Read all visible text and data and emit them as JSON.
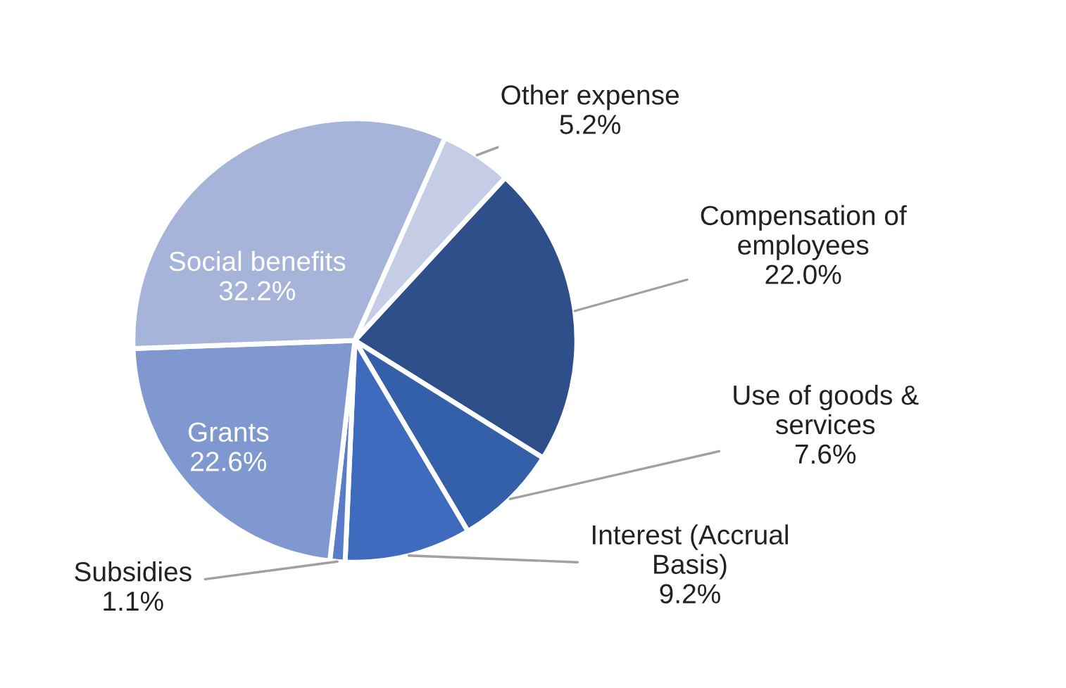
{
  "chart_data": {
    "type": "pie",
    "categories": [
      "Compensation of\nemployees",
      "Use of goods &\nservices",
      "Interest (Accrual\nBasis)",
      "Subsidies",
      "Grants",
      "Social benefits",
      "Other expense"
    ],
    "values": [
      22.0,
      7.6,
      9.2,
      1.1,
      22.6,
      32.2,
      5.2
    ],
    "value_labels": [
      "22.0%",
      "7.6%",
      "9.2%",
      "1.1%",
      "22.6%",
      "32.2%",
      "5.2%"
    ],
    "colors": [
      "#2f4f8a",
      "#3360a8",
      "#3f6bbf",
      "#5a7bc8",
      "#8098d0",
      "#a7b4da",
      "#c5cde6"
    ],
    "legend": false
  }
}
